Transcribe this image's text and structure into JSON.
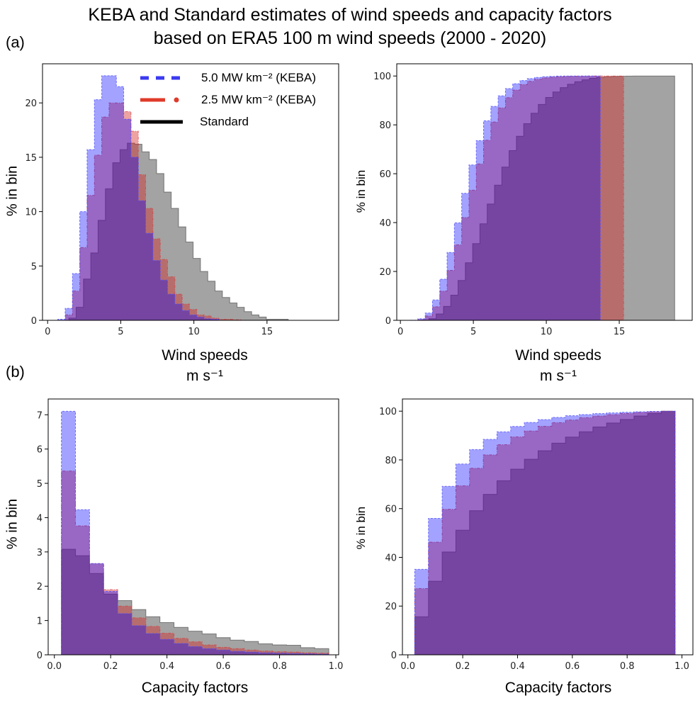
{
  "figure": {
    "title_line1": "KEBA and Standard estimates of wind speeds and capacity factors",
    "title_line2": "based on ERA5 100 m wind speeds (2000 - 2020)",
    "label_a": "(a)",
    "label_b": "(b)",
    "xlabel_wind": "Wind speeds",
    "xlabel_wind_units": "m s⁻¹",
    "xlabel_cf": "Capacity factors",
    "ylabel": "% in bin"
  },
  "legend": [
    {
      "label": "5.0 MW km⁻² (KEBA)",
      "color": "#3a3af0",
      "style": "dashed"
    },
    {
      "label": "2.5 MW km⁻² (KEBA)",
      "color": "#e03a2a",
      "style": "dashdot"
    },
    {
      "label": "Standard",
      "color": "#000000",
      "style": "solid"
    }
  ],
  "colors": {
    "keba5": "#0000ff",
    "keba25": "#e02828",
    "standard": "#000000"
  },
  "chart_data": [
    {
      "id": "a-hist",
      "type": "bar",
      "histogram": true,
      "cumulative": false,
      "xlabel": "Wind speeds m s⁻¹",
      "ylabel": "% in bin",
      "xlim": [
        -0.35,
        19.9
      ],
      "ylim": [
        0,
        23.6
      ],
      "xticks": [
        0,
        5,
        10,
        15
      ],
      "yticks": [
        0,
        5,
        10,
        15,
        20
      ],
      "series": [
        {
          "name": "Standard",
          "key": "standard",
          "bin_start": 1.45,
          "bin_width": 0.5,
          "values": [
            0.2,
            1.2,
            3.8,
            6.2,
            9.2,
            12.1,
            14.5,
            15.7,
            16.3,
            16.2,
            15.5,
            14.8,
            13.5,
            11.8,
            10.3,
            8.6,
            7.2,
            5.7,
            4.5,
            3.6,
            2.7,
            2.1,
            1.6,
            1.2,
            0.8,
            0.5,
            0.3,
            0.1,
            0.1,
            0.1
          ]
        },
        {
          "name": "2.5 MW km⁻² (KEBA)",
          "key": "keba25",
          "bin_start": 0.7,
          "bin_width": 0.5,
          "values": [
            0,
            0.5,
            2.7,
            6.7,
            11.5,
            15.2,
            18.7,
            20.0,
            20.0,
            19.2,
            17.4,
            13.4,
            10.3,
            7.5,
            5.6,
            4.0,
            2.4,
            1.5,
            1.0,
            0.5,
            0.4,
            0.2,
            0.1,
            0.1,
            0.05
          ]
        },
        {
          "name": "5.0 MW km⁻² (KEBA)",
          "key": "keba5",
          "bin_start": 0.7,
          "bin_width": 0.5,
          "values": [
            0.1,
            1.1,
            4.3,
            10.0,
            15.7,
            20.3,
            22.5,
            22.5,
            21.5,
            18.5,
            15.0,
            11.0,
            8.0,
            5.5,
            3.7,
            2.4,
            1.5,
            0.9,
            0.5,
            0.3,
            0.15,
            0.1
          ]
        }
      ]
    },
    {
      "id": "a-cum",
      "type": "area",
      "histogram": true,
      "cumulative": true,
      "xlabel": "Wind speeds m s⁻¹",
      "ylabel": "% in bin",
      "xlim": [
        -0.25,
        20.0
      ],
      "ylim": [
        0,
        105
      ],
      "xticks": [
        0,
        5,
        10,
        15
      ],
      "yticks": [
        0,
        20,
        40,
        60,
        80,
        100
      ],
      "source": "a-hist",
      "range_max": {
        "standard": 18.8,
        "keba25": 15.3,
        "keba5": 13.7
      }
    },
    {
      "id": "b-hist",
      "type": "bar",
      "histogram": true,
      "cumulative": false,
      "xlabel": "Capacity factors",
      "ylabel": "% in bin",
      "xlim": [
        -0.022,
        1.01
      ],
      "ylim": [
        0,
        7.46
      ],
      "xticks": [
        0.0,
        0.2,
        0.4,
        0.6,
        0.8,
        1.0
      ],
      "xtick_decimals": 1,
      "yticks": [
        0,
        1,
        2,
        3,
        4,
        5,
        6,
        7
      ],
      "series": [
        {
          "name": "Standard",
          "key": "standard",
          "bin_start": 0.025,
          "bin_width": 0.05,
          "values": [
            3.08,
            2.89,
            2.37,
            1.77,
            1.58,
            1.32,
            1.11,
            0.94,
            0.8,
            0.69,
            0.61,
            0.5,
            0.43,
            0.39,
            0.32,
            0.29,
            0.28,
            0.21,
            0.18
          ]
        },
        {
          "name": "2.5 MW km⁻² (KEBA)",
          "key": "keba25",
          "bin_start": 0.025,
          "bin_width": 0.05,
          "values": [
            5.36,
            3.76,
            2.66,
            1.9,
            1.42,
            1.08,
            0.83,
            0.63,
            0.48,
            0.38,
            0.29,
            0.22,
            0.18,
            0.14,
            0.11,
            0.09,
            0.08,
            0.06,
            0.05
          ]
        },
        {
          "name": "5.0 MW km⁻² (KEBA)",
          "key": "keba5",
          "bin_start": 0.025,
          "bin_width": 0.05,
          "values": [
            7.1,
            4.23,
            2.66,
            1.85,
            1.2,
            0.85,
            0.62,
            0.45,
            0.33,
            0.24,
            0.18,
            0.14,
            0.1,
            0.08,
            0.06,
            0.05,
            0.04,
            0.03,
            0.02
          ]
        }
      ]
    },
    {
      "id": "b-cum",
      "type": "area",
      "histogram": true,
      "cumulative": true,
      "xlabel": "Capacity factors",
      "ylabel": "% in bin",
      "xlim": [
        -0.02,
        1.04
      ],
      "ylim": [
        0,
        105
      ],
      "xticks": [
        0.0,
        0.2,
        0.4,
        0.6,
        0.8,
        1.0
      ],
      "xtick_decimals": 1,
      "yticks": [
        0,
        20,
        40,
        60,
        80,
        100
      ],
      "source": "b-hist"
    }
  ]
}
